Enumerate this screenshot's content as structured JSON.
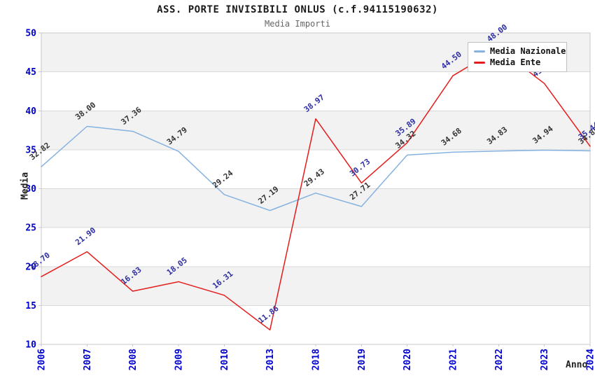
{
  "header": {
    "title": "ASS. PORTE INVISIBILI ONLUS (c.f.94115190632)",
    "subtitle": "Media Importi"
  },
  "axes": {
    "y_label": "Media",
    "x_label": "Anno",
    "y_ticks": [
      "50",
      "45",
      "40",
      "35",
      "30",
      "25",
      "20",
      "15",
      "10"
    ],
    "tick_label_color": "#0000cc"
  },
  "legend": {
    "items": [
      {
        "label": "Media Nazionale",
        "color": "#85b2e1"
      },
      {
        "label": "Media Ente",
        "color": "#e51c1c"
      }
    ]
  },
  "colors": {
    "band_gray": "#f2f2f2",
    "gridline": "#d9d9d9",
    "plot_border": "#c8c8c8",
    "title": "#1a1a1a",
    "subtitle": "#666666"
  },
  "chart_data": {
    "type": "line",
    "title": "ASS. PORTE INVISIBILI ONLUS (c.f.94115190632)",
    "subtitle": "Media Importi",
    "xlabel": "Anno",
    "ylabel": "Media",
    "ylim": [
      10,
      50
    ],
    "y_tick_step": 5,
    "grid": "horizontal gridlines every 5 units, alternating gray/white background bands",
    "legend_position": "top-right",
    "categories": [
      "2006",
      "2007",
      "2008",
      "2009",
      "2010",
      "2013",
      "2018",
      "2019",
      "2020",
      "2021",
      "2022",
      "2023",
      "2024"
    ],
    "series": [
      {
        "name": "Media Nazionale",
        "color": "#85b2e1",
        "label_color": "#333333",
        "values": [
          32.82,
          38.0,
          37.36,
          34.79,
          29.24,
          27.19,
          29.43,
          27.71,
          34.32,
          34.68,
          34.83,
          34.94,
          34.85
        ]
      },
      {
        "name": "Media Ente",
        "color": "#e51c1c",
        "label_color": "#2e2ea3",
        "values": [
          18.7,
          21.9,
          16.83,
          18.05,
          16.31,
          11.86,
          38.97,
          30.73,
          35.89,
          44.5,
          48.0,
          43.5,
          35.44
        ]
      }
    ],
    "note": "Media Ente 2022 value/label is hidden behind the legend box and 2023 label is partially hidden (both estimated from line position); Media Nazionale 2024 label is clipped at the right edge."
  }
}
